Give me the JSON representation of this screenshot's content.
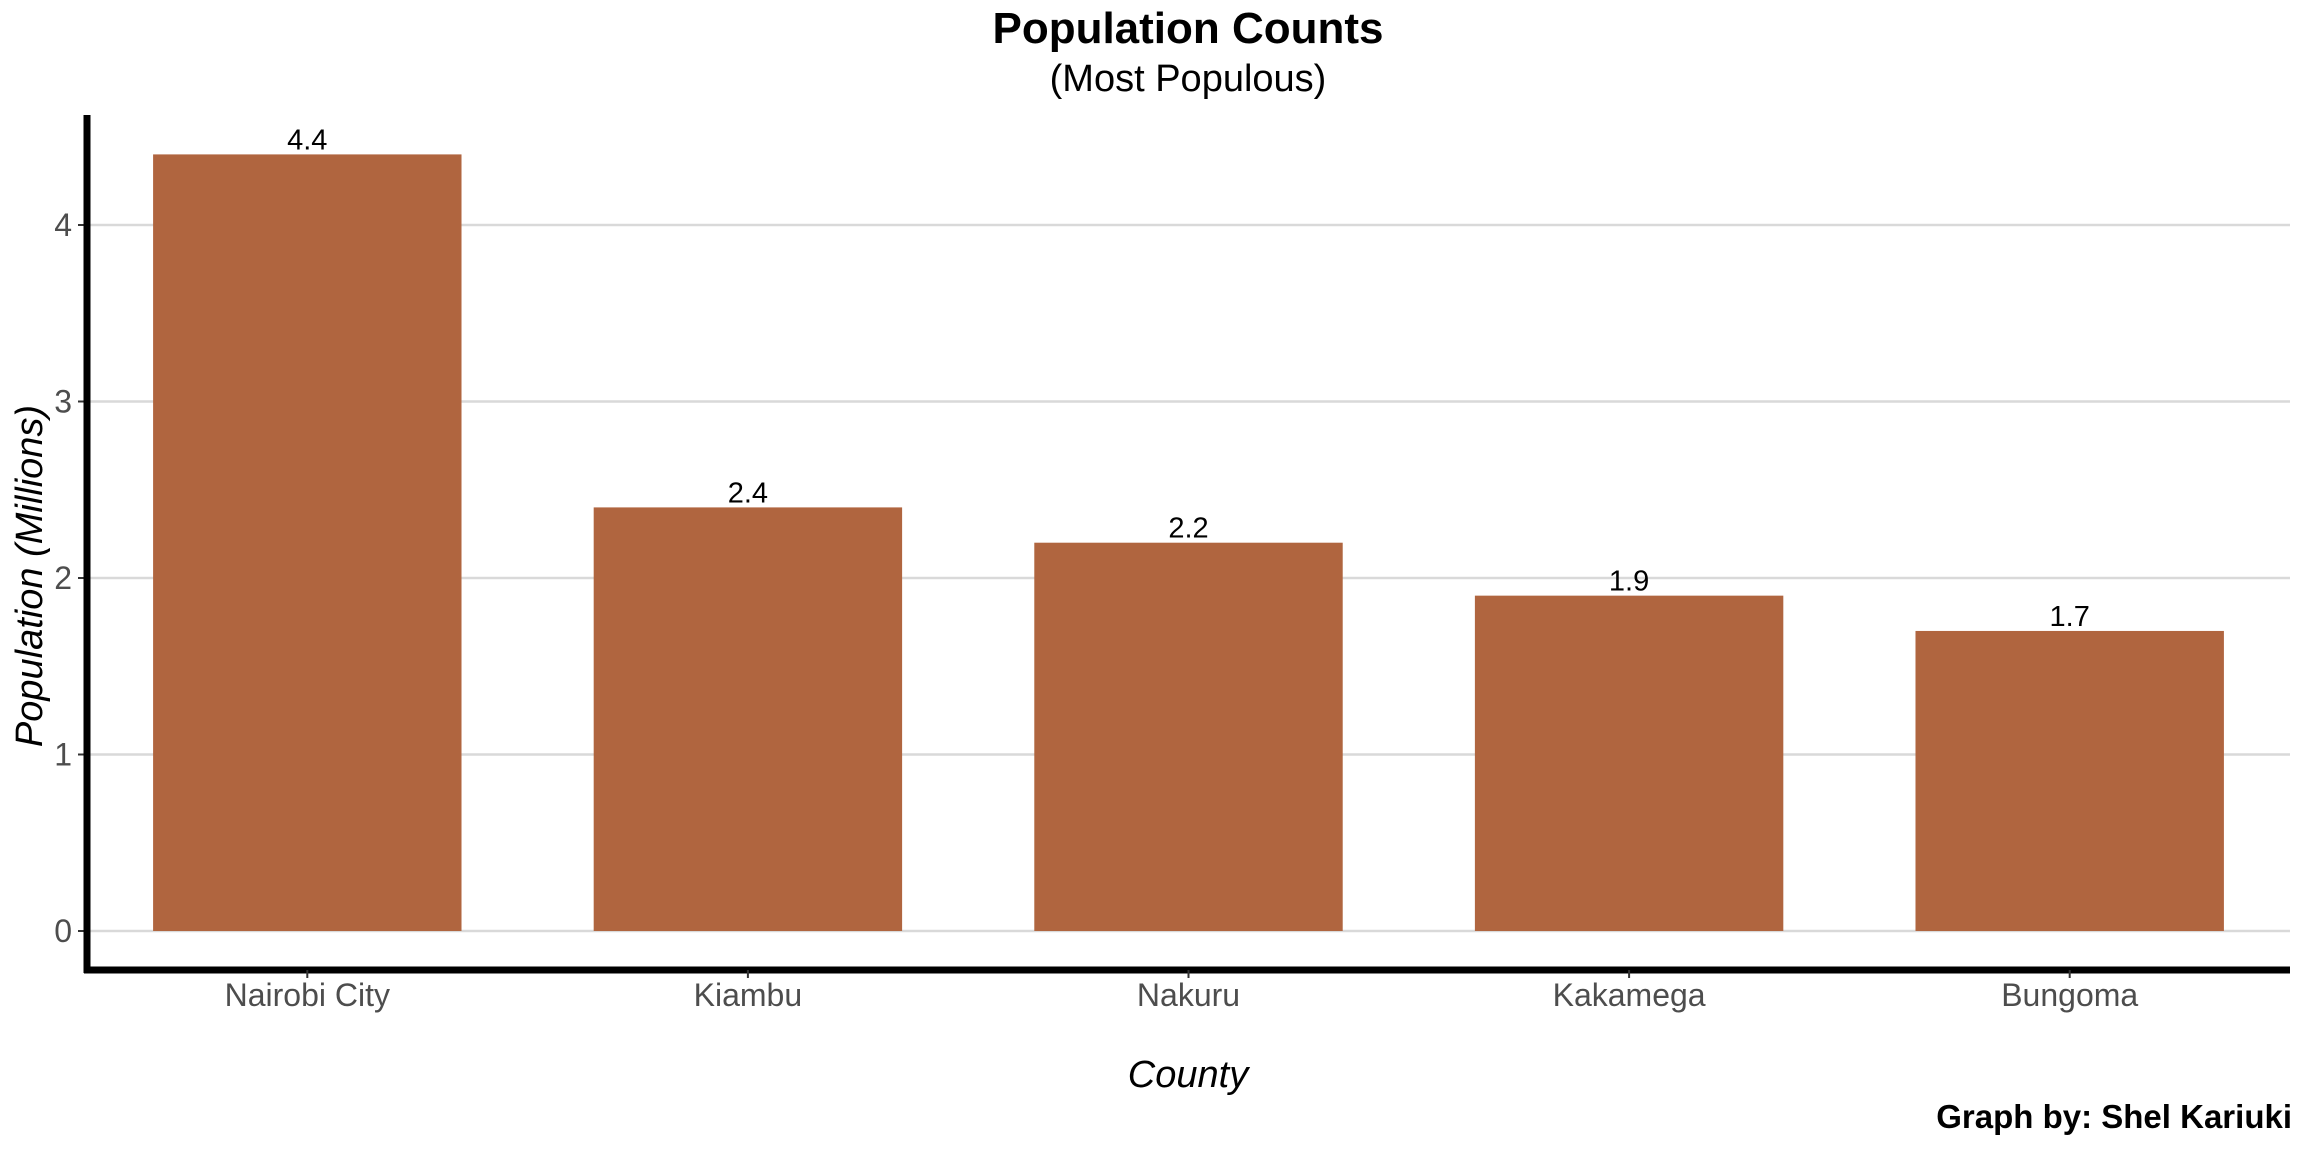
{
  "chart_data": {
    "type": "bar",
    "title": "Population Counts",
    "subtitle": "(Most Populous)",
    "xlabel": "County",
    "ylabel": "Population (Millions)",
    "categories": [
      "Nairobi City",
      "Kiambu",
      "Nakuru",
      "Kakamega",
      "Bungoma"
    ],
    "values": [
      4.4,
      2.4,
      2.2,
      1.9,
      1.7
    ],
    "data_labels": [
      "4.4",
      "2.4",
      "2.2",
      "1.9",
      "1.7"
    ],
    "ylim": [
      -0.2,
      4.6
    ],
    "yticks": [
      0,
      1,
      2,
      3,
      4
    ],
    "grid": "horizontal",
    "bar_color": "#b0653f",
    "caption": "Graph by: Shel Kariuki"
  }
}
